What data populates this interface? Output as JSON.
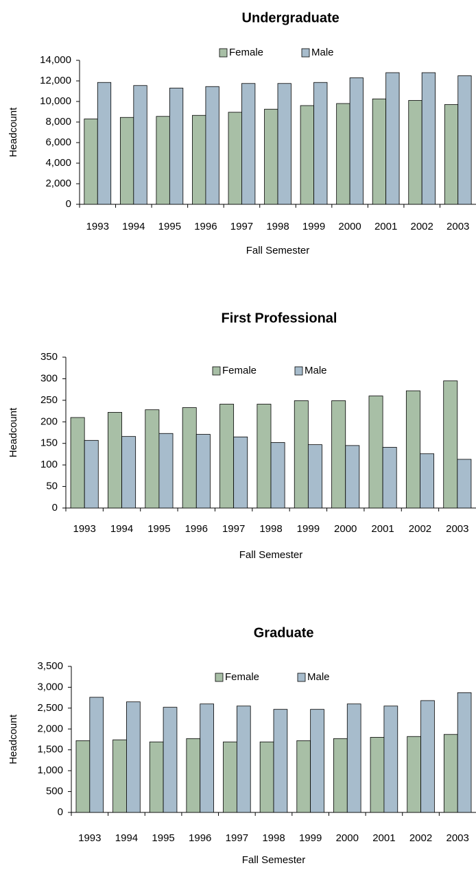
{
  "chart_data": [
    {
      "type": "bar",
      "title": "Undergraduate",
      "x_label": "Fall Semester",
      "y_label": "Headcount",
      "categories": [
        "1993",
        "1994",
        "1995",
        "1996",
        "1997",
        "1998",
        "1999",
        "2000",
        "2001",
        "2002",
        "2003"
      ],
      "series": [
        {
          "name": "Female",
          "color": "#a8bfa6",
          "values": [
            8300,
            8450,
            8550,
            8650,
            8950,
            9250,
            9600,
            9800,
            10250,
            10100,
            9700
          ]
        },
        {
          "name": "Male",
          "color": "#a7bccc",
          "values": [
            11850,
            11550,
            11300,
            11450,
            11750,
            11750,
            11850,
            12300,
            12800,
            12800,
            12500
          ]
        }
      ],
      "ylim": [
        0,
        14000
      ],
      "yticks": [
        0,
        {
          "value": 2000,
          "label": "2,000"
        },
        {
          "value": 4000,
          "label": "4,000"
        },
        {
          "value": 6000,
          "label": "6,000"
        },
        {
          "value": 8000,
          "label": "8,000"
        },
        {
          "value": 10000,
          "label": "10,000"
        },
        {
          "value": 12000,
          "label": "12,000"
        },
        {
          "value": 14000,
          "label": "14,000"
        }
      ],
      "legend": "top"
    },
    {
      "type": "bar",
      "title": "First Professional",
      "x_label": "Fall Semester",
      "y_label": "Headcount",
      "categories": [
        "1993",
        "1994",
        "1995",
        "1996",
        "1997",
        "1998",
        "1999",
        "2000",
        "2001",
        "2002",
        "2003"
      ],
      "series": [
        {
          "name": "Female",
          "color": "#a8bfa6",
          "values": [
            210,
            222,
            228,
            233,
            241,
            241,
            249,
            249,
            260,
            272,
            295
          ]
        },
        {
          "name": "Male",
          "color": "#a7bccc",
          "values": [
            157,
            166,
            173,
            171,
            165,
            152,
            147,
            145,
            141,
            126,
            113
          ]
        }
      ],
      "ylim": [
        0,
        350
      ],
      "yticks": [
        0,
        50,
        100,
        150,
        200,
        250,
        300,
        350
      ],
      "legend": "top"
    },
    {
      "type": "bar",
      "title": "Graduate",
      "x_label": "Fall Semester",
      "y_label": "Headcount",
      "categories": [
        "1993",
        "1994",
        "1995",
        "1996",
        "1997",
        "1998",
        "1999",
        "2000",
        "2001",
        "2002",
        "2003"
      ],
      "series": [
        {
          "name": "Female",
          "color": "#a8bfa6",
          "values": [
            1720,
            1740,
            1690,
            1770,
            1690,
            1690,
            1720,
            1770,
            1800,
            1820,
            1870
          ]
        },
        {
          "name": "Male",
          "color": "#a7bccc",
          "values": [
            2760,
            2650,
            2520,
            2600,
            2550,
            2470,
            2470,
            2600,
            2550,
            2680,
            2870
          ]
        }
      ],
      "ylim": [
        0,
        3500
      ],
      "yticks": [
        0,
        500,
        {
          "value": 1000,
          "label": "1,000"
        },
        {
          "value": 1500,
          "label": "1,500"
        },
        {
          "value": 2000,
          "label": "2,000"
        },
        {
          "value": 2500,
          "label": "2,500"
        },
        {
          "value": 3000,
          "label": "3,000"
        },
        {
          "value": 3500,
          "label": "3,500"
        }
      ],
      "legend": "top"
    }
  ]
}
